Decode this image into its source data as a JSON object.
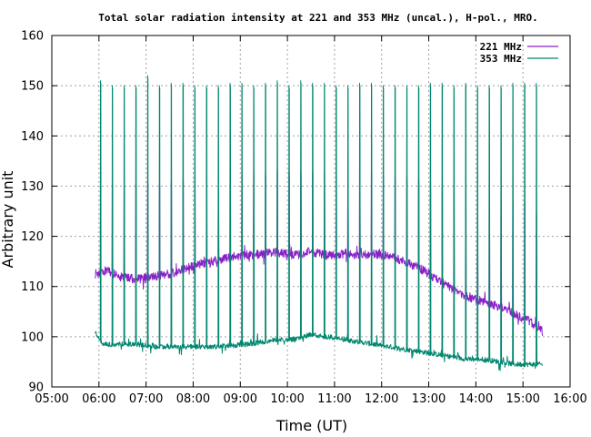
{
  "chart_data": {
    "type": "line",
    "title": "Total solar radiation intensity at 221 and 353 MHz (uncal.), H-pol., MRO.",
    "xlabel": "Time (UT)",
    "ylabel": "Arbitrary unit",
    "xlim": [
      "05:00",
      "16:00"
    ],
    "ylim": [
      90,
      160
    ],
    "x_ticks": [
      "05:00",
      "06:00",
      "07:00",
      "08:00",
      "09:00",
      "10:00",
      "11:00",
      "12:00",
      "13:00",
      "14:00",
      "15:00",
      "16:00"
    ],
    "y_ticks": [
      "90",
      "100",
      "110",
      "120",
      "130",
      "140",
      "150",
      "160"
    ],
    "grid": true,
    "legend_position": "top-right",
    "series": [
      {
        "name": "221 MHz",
        "color": "#8b1fc7",
        "baseline": [
          [
            "05:55",
            112.5
          ],
          [
            "06:10",
            113.2
          ],
          [
            "06:30",
            111.8
          ],
          [
            "06:50",
            111.5
          ],
          [
            "07:10",
            112.0
          ],
          [
            "07:30",
            112.5
          ],
          [
            "07:50",
            113.5
          ],
          [
            "08:10",
            114.5
          ],
          [
            "08:30",
            115.2
          ],
          [
            "08:50",
            116.0
          ],
          [
            "09:10",
            116.3
          ],
          [
            "09:30",
            116.5
          ],
          [
            "09:50",
            116.8
          ],
          [
            "10:10",
            116.2
          ],
          [
            "10:30",
            117.0
          ],
          [
            "10:50",
            116.2
          ],
          [
            "11:10",
            116.5
          ],
          [
            "11:30",
            116.2
          ],
          [
            "11:50",
            116.5
          ],
          [
            "12:10",
            116.0
          ],
          [
            "12:30",
            115.0
          ],
          [
            "12:50",
            113.5
          ],
          [
            "13:10",
            111.5
          ],
          [
            "13:30",
            109.5
          ],
          [
            "13:50",
            108.0
          ],
          [
            "14:10",
            107.0
          ],
          [
            "14:30",
            106.0
          ],
          [
            "14:50",
            104.5
          ],
          [
            "15:10",
            103.0
          ],
          [
            "15:25",
            101.0
          ]
        ],
        "spikes": [
          [
            "06:02",
            131.5
          ],
          [
            "06:17",
            131.0
          ],
          [
            "06:32",
            130.5
          ],
          [
            "06:47",
            130.5
          ],
          [
            "07:02",
            131.0
          ],
          [
            "07:17",
            130.5
          ],
          [
            "07:32",
            131.0
          ],
          [
            "07:47",
            131.5
          ],
          [
            "08:02",
            132.5
          ],
          [
            "08:17",
            133.0
          ],
          [
            "08:32",
            132.5
          ],
          [
            "08:47",
            133.0
          ],
          [
            "09:02",
            133.0
          ],
          [
            "09:17",
            133.5
          ],
          [
            "09:32",
            132.5
          ],
          [
            "09:47",
            133.5
          ],
          [
            "10:02",
            133.0
          ],
          [
            "10:17",
            133.0
          ],
          [
            "10:32",
            133.0
          ],
          [
            "10:47",
            133.0
          ],
          [
            "11:02",
            133.0
          ],
          [
            "11:17",
            132.5
          ],
          [
            "11:32",
            132.5
          ],
          [
            "11:47",
            133.5
          ],
          [
            "12:02",
            132.5
          ],
          [
            "12:17",
            132.0
          ],
          [
            "12:32",
            132.0
          ],
          [
            "12:47",
            131.5
          ],
          [
            "13:02",
            131.0
          ],
          [
            "13:17",
            130.5
          ],
          [
            "13:32",
            130.0
          ],
          [
            "13:47",
            129.0
          ],
          [
            "14:02",
            128.5
          ],
          [
            "14:17",
            129.0
          ],
          [
            "14:32",
            127.5
          ],
          [
            "14:47",
            127.5
          ],
          [
            "15:02",
            127.0
          ],
          [
            "15:17",
            125.0
          ]
        ]
      },
      {
        "name": "353 MHz",
        "color": "#00876f",
        "baseline": [
          [
            "05:55",
            101.0
          ],
          [
            "06:05",
            98.5
          ],
          [
            "06:30",
            98.5
          ],
          [
            "06:50",
            98.5
          ],
          [
            "07:10",
            98.0
          ],
          [
            "07:30",
            98.0
          ],
          [
            "07:50",
            98.0
          ],
          [
            "08:10",
            98.0
          ],
          [
            "08:30",
            98.0
          ],
          [
            "08:50",
            98.3
          ],
          [
            "09:10",
            98.5
          ],
          [
            "09:30",
            99.0
          ],
          [
            "09:50",
            99.5
          ],
          [
            "10:10",
            99.5
          ],
          [
            "10:30",
            100.5
          ],
          [
            "10:50",
            100.0
          ],
          [
            "11:10",
            99.5
          ],
          [
            "11:30",
            99.0
          ],
          [
            "11:50",
            98.5
          ],
          [
            "12:10",
            98.0
          ],
          [
            "12:30",
            97.5
          ],
          [
            "12:50",
            97.0
          ],
          [
            "13:10",
            96.5
          ],
          [
            "13:30",
            96.0
          ],
          [
            "13:50",
            95.5
          ],
          [
            "14:10",
            95.5
          ],
          [
            "14:30",
            95.0
          ],
          [
            "14:50",
            94.5
          ],
          [
            "15:10",
            94.5
          ],
          [
            "15:25",
            94.5
          ]
        ],
        "spikes": [
          [
            "06:02",
            151.0
          ],
          [
            "06:17",
            150.0
          ],
          [
            "06:32",
            150.0
          ],
          [
            "06:47",
            150.0
          ],
          [
            "07:02",
            152.0
          ],
          [
            "07:17",
            150.0
          ],
          [
            "07:32",
            150.5
          ],
          [
            "07:47",
            150.5
          ],
          [
            "08:02",
            150.0
          ],
          [
            "08:17",
            150.0
          ],
          [
            "08:32",
            150.0
          ],
          [
            "08:47",
            150.5
          ],
          [
            "09:02",
            150.5
          ],
          [
            "09:17",
            150.0
          ],
          [
            "09:32",
            150.5
          ],
          [
            "09:47",
            151.0
          ],
          [
            "10:02",
            150.0
          ],
          [
            "10:17",
            151.0
          ],
          [
            "10:32",
            150.5
          ],
          [
            "10:47",
            150.5
          ],
          [
            "11:02",
            150.0
          ],
          [
            "11:17",
            150.0
          ],
          [
            "11:32",
            150.5
          ],
          [
            "11:47",
            150.5
          ],
          [
            "12:02",
            150.0
          ],
          [
            "12:17",
            150.0
          ],
          [
            "12:32",
            150.0
          ],
          [
            "12:47",
            150.0
          ],
          [
            "13:02",
            150.5
          ],
          [
            "13:17",
            150.5
          ],
          [
            "13:32",
            150.0
          ],
          [
            "13:47",
            150.5
          ],
          [
            "14:02",
            150.0
          ],
          [
            "14:17",
            150.0
          ],
          [
            "14:32",
            150.0
          ],
          [
            "14:47",
            150.5
          ],
          [
            "15:02",
            150.5
          ],
          [
            "15:17",
            150.5
          ]
        ]
      }
    ]
  }
}
